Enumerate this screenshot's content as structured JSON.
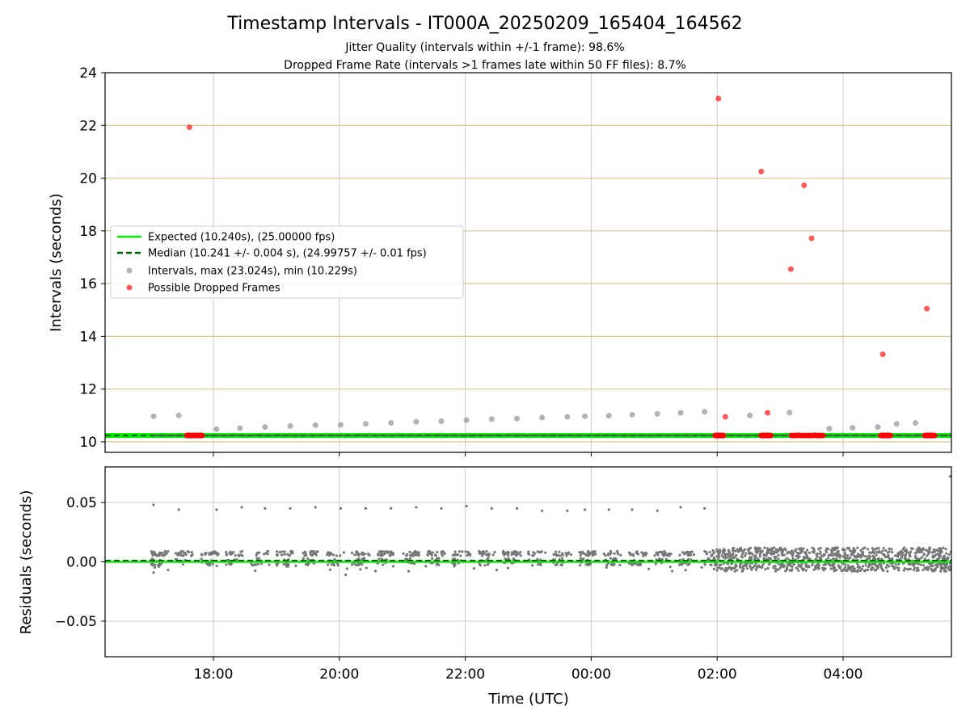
{
  "chart_data": [
    {
      "type": "scatter",
      "title": "Timestamp Intervals - IT000A_20250209_165404_164562",
      "subtitle_1": "Jitter Quality (intervals within +/-1 frame): 98.6%",
      "subtitle_2": "Dropped Frame Rate (intervals >1 frames late within 50 FF files): 8.7%",
      "xlabel": "",
      "ylabel": "Intervals (seconds)",
      "x_unit": "hours since 00:00 UTC (negative = previous day)",
      "xlim": [
        -7.72,
        5.72
      ],
      "ylim": [
        9.6,
        24
      ],
      "y_ticks": [
        "10",
        "12",
        "14",
        "16",
        "18",
        "20",
        "22",
        "24"
      ],
      "y_tick_values": [
        10,
        12,
        14,
        16,
        18,
        20,
        22,
        24
      ],
      "hlines": [
        10,
        12,
        14,
        16,
        18,
        20,
        22
      ],
      "hline_color": "#dcc38a",
      "legend_position": "center-left",
      "legend": [
        "Expected (10.240s), (25.00000 fps)",
        "Median (10.241 +/- 0.004 s), (24.99757 +/- 0.01 fps)",
        "Intervals, max (23.024s), min (10.229s)",
        "Possible Dropped Frames"
      ],
      "series": [
        {
          "name": "Expected (10.240s), (25.00000 fps)",
          "style": "solid-line",
          "color": "#00ee00",
          "value": 10.24
        },
        {
          "name": "Median (10.241 +/- 0.004 s), (24.99757 +/- 0.01 fps)",
          "style": "dashed-line",
          "color": "#006400",
          "value": 10.241
        },
        {
          "name": "Intervals, max (23.024s), min (10.229s)",
          "style": "markers",
          "color": "#999999",
          "baseline": 10.24,
          "baseline_x_range": [
            -7.0,
            5.72
          ],
          "points": [
            [
              -6.95,
              10.97
            ],
            [
              -6.55,
              11.0
            ],
            [
              -5.95,
              10.48
            ],
            [
              -5.58,
              10.52
            ],
            [
              -5.18,
              10.56
            ],
            [
              -4.78,
              10.6
            ],
            [
              -4.38,
              10.63
            ],
            [
              -3.98,
              10.64
            ],
            [
              -3.58,
              10.68
            ],
            [
              -3.18,
              10.72
            ],
            [
              -2.78,
              10.76
            ],
            [
              -2.38,
              10.78
            ],
            [
              -1.98,
              10.82
            ],
            [
              -1.58,
              10.86
            ],
            [
              -1.18,
              10.88
            ],
            [
              -0.78,
              10.92
            ],
            [
              -0.38,
              10.95
            ],
            [
              -0.1,
              10.97
            ],
            [
              0.28,
              10.99
            ],
            [
              0.65,
              11.03
            ],
            [
              1.05,
              11.06
            ],
            [
              1.42,
              11.1
            ],
            [
              1.8,
              11.14
            ],
            [
              2.52,
              11.0
            ],
            [
              3.15,
              11.11
            ],
            [
              3.78,
              10.5
            ],
            [
              4.15,
              10.53
            ],
            [
              4.55,
              10.56
            ],
            [
              4.85,
              10.68
            ],
            [
              5.15,
              10.72
            ],
            [
              5.7,
              10.25
            ]
          ]
        },
        {
          "name": "Possible Dropped Frames",
          "style": "markers",
          "color": "#ff0000",
          "points": [
            [
              -6.38,
              21.93
            ],
            [
              -6.4,
              10.25
            ],
            [
              -6.35,
              10.24
            ],
            [
              -6.3,
              10.25
            ],
            [
              -6.25,
              10.24
            ],
            [
              -6.2,
              10.25
            ],
            [
              2.02,
              23.02
            ],
            [
              1.98,
              10.24
            ],
            [
              2.03,
              10.24
            ],
            [
              2.08,
              10.24
            ],
            [
              2.13,
              10.95
            ],
            [
              2.7,
              20.25
            ],
            [
              2.72,
              10.24
            ],
            [
              2.77,
              10.25
            ],
            [
              2.8,
              11.1
            ],
            [
              2.82,
              10.24
            ],
            [
              3.17,
              16.55
            ],
            [
              3.2,
              10.24
            ],
            [
              3.25,
              10.24
            ],
            [
              3.3,
              10.25
            ],
            [
              3.38,
              19.73
            ],
            [
              3.42,
              10.24
            ],
            [
              3.47,
              10.24
            ],
            [
              3.5,
              17.72
            ],
            [
              3.55,
              10.25
            ],
            [
              3.6,
              10.24
            ],
            [
              3.65,
              10.24
            ],
            [
              4.63,
              13.32
            ],
            [
              4.62,
              10.24
            ],
            [
              4.67,
              10.24
            ],
            [
              4.72,
              10.24
            ],
            [
              5.33,
              15.05
            ],
            [
              5.32,
              10.24
            ],
            [
              5.37,
              10.24
            ],
            [
              5.42,
              10.24
            ]
          ]
        }
      ]
    },
    {
      "type": "scatter",
      "xlabel": "Time (UTC)",
      "ylabel": "Residuals (seconds)",
      "x_unit": "hours since 00:00 UTC (negative = previous day)",
      "xlim": [
        -7.72,
        5.72
      ],
      "ylim": [
        -0.08,
        0.08
      ],
      "x_ticks": [
        "18:00",
        "20:00",
        "22:00",
        "00:00",
        "02:00",
        "04:00"
      ],
      "x_tick_values": [
        -6,
        -4,
        -2,
        0,
        2,
        4
      ],
      "y_ticks": [
        "−0.05",
        "0.00",
        "0.05"
      ],
      "y_tick_values": [
        -0.05,
        0,
        0.05
      ],
      "series": [
        {
          "name": "Expected",
          "style": "solid-line",
          "color": "#00ee00",
          "value": 0.0
        },
        {
          "name": "Median",
          "style": "dashed-line",
          "color": "#006400",
          "value": 0.001
        },
        {
          "name": "Residuals",
          "style": "markers",
          "color": "#777777",
          "outliers": [
            [
              -6.95,
              0.048
            ],
            [
              -6.55,
              0.044
            ],
            [
              -5.95,
              0.044
            ],
            [
              -5.55,
              0.046
            ],
            [
              -5.18,
              0.045
            ],
            [
              -4.78,
              0.045
            ],
            [
              -4.38,
              0.046
            ],
            [
              -3.98,
              0.045
            ],
            [
              -3.58,
              0.045
            ],
            [
              -3.18,
              0.045
            ],
            [
              -2.78,
              0.046
            ],
            [
              -2.38,
              0.045
            ],
            [
              -1.98,
              0.047
            ],
            [
              -1.58,
              0.045
            ],
            [
              -1.18,
              0.045
            ],
            [
              -0.78,
              0.043
            ],
            [
              -0.38,
              0.043
            ],
            [
              -0.1,
              0.044
            ],
            [
              0.28,
              0.044
            ],
            [
              0.65,
              0.044
            ],
            [
              1.05,
              0.043
            ],
            [
              1.42,
              0.046
            ],
            [
              1.8,
              0.045
            ],
            [
              5.7,
              0.072
            ],
            [
              -6.95,
              -0.009
            ],
            [
              -3.9,
              -0.011
            ],
            [
              -2.9,
              -0.008
            ],
            [
              -1.5,
              -0.007
            ],
            [
              1.5,
              -0.007
            ],
            [
              2.4,
              -0.008
            ]
          ],
          "bands": [
            {
              "x_range": [
                -7.0,
                1.9
              ],
              "y_range": [
                0.005,
                0.009
              ],
              "segment_hours": 0.4,
              "fill_fraction": 0.7
            },
            {
              "x_range": [
                -7.0,
                1.9
              ],
              "y_range": [
                -0.003,
                0.003
              ],
              "segment_hours": 0.4,
              "fill_fraction": 0.5
            },
            {
              "x_range": [
                1.9,
                5.72
              ],
              "y_range": [
                -0.008,
                0.012
              ],
              "segment_hours": 0.0,
              "fill_fraction": 1.0
            }
          ]
        }
      ]
    }
  ]
}
